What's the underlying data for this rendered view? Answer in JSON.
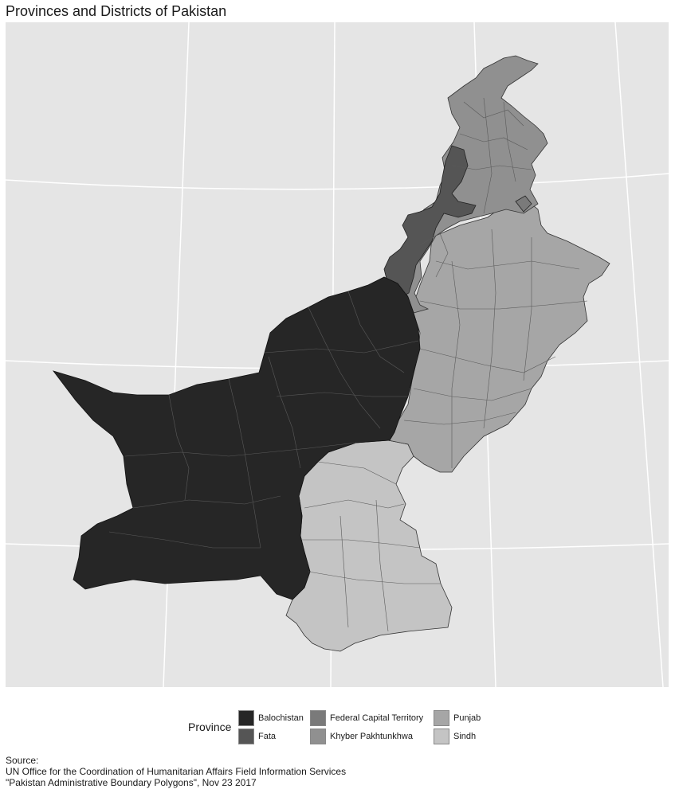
{
  "title": "Provinces and Districts of Pakistan",
  "legend": {
    "title": "Province",
    "items": [
      {
        "label": "Balochistan",
        "color": "#262626"
      },
      {
        "label": "Fata",
        "color": "#555555"
      },
      {
        "label": "Federal Capital Territory",
        "color": "#7a7a7a"
      },
      {
        "label": "Khyber Pakhtunkhwa",
        "color": "#909090"
      },
      {
        "label": "Punjab",
        "color": "#a6a6a6"
      },
      {
        "label": "Sindh",
        "color": "#c4c4c4"
      }
    ]
  },
  "caption": {
    "line1": "Source:",
    "line2": "UN Office for the Coordination of Humanitarian Affairs Field Information Services",
    "line3": "\"Pakistan Administrative Boundary Polygons\", Nov 23 2017"
  },
  "map": {
    "background": "#e5e5e5",
    "graticule_color": "#ffffff",
    "border_color": "#1a1a1a"
  }
}
